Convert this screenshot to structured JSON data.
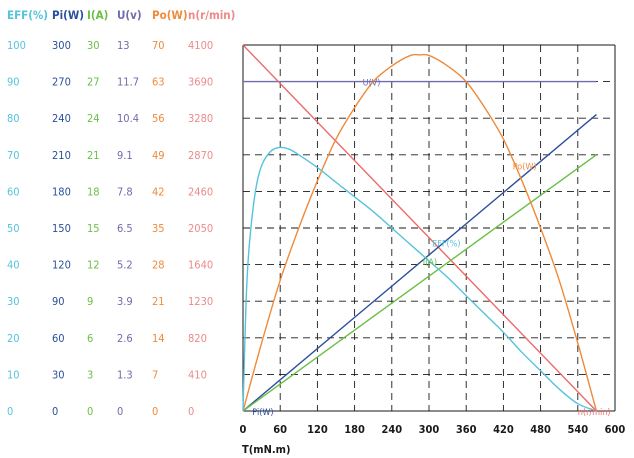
{
  "chart_data": {
    "type": "line",
    "x_label": "T(mN.m)",
    "x_ticks": [
      "0",
      "60",
      "120",
      "180",
      "240",
      "300",
      "360",
      "420",
      "480",
      "540",
      "600"
    ],
    "xlim": [
      0,
      600
    ],
    "grid": true,
    "columns": [
      {
        "key": "eff",
        "header": "EFF(%)",
        "color": "#55c3dc",
        "ticks": [
          "100",
          "90",
          "80",
          "70",
          "60",
          "50",
          "40",
          "30",
          "20",
          "10",
          "0"
        ]
      },
      {
        "key": "pi",
        "header": "Pi(W)",
        "color": "#2a4f9c",
        "ticks": [
          "300",
          "270",
          "240",
          "210",
          "180",
          "150",
          "120",
          "90",
          "60",
          "30",
          "0"
        ]
      },
      {
        "key": "i",
        "header": "I(A)",
        "color": "#6bbf45",
        "ticks": [
          "30",
          "27",
          "24",
          "21",
          "18",
          "15",
          "12",
          "9",
          "6",
          "3",
          "0"
        ]
      },
      {
        "key": "u",
        "header": "U(v)",
        "color": "#6e6cab",
        "ticks": [
          "13",
          "11.7",
          "10.4",
          "9.1",
          "7.8",
          "6.5",
          "5.2",
          "3.9",
          "2.6",
          "1.3",
          "0"
        ]
      },
      {
        "key": "po",
        "header": "Po(W)",
        "color": "#ef8a3a",
        "ticks": [
          "70",
          "63",
          "56",
          "49",
          "42",
          "35",
          "28",
          "21",
          "14",
          "7",
          "0"
        ]
      },
      {
        "key": "n",
        "header": "n(r/min)",
        "color": "#ec8a8a",
        "ticks": [
          "4100",
          "3690",
          "3280",
          "2870",
          "2460",
          "2050",
          "1640",
          "1230",
          "820",
          "410",
          "0"
        ]
      }
    ],
    "series": [
      {
        "name": "U(V)",
        "color": "#6e6cab",
        "label_at": [
          193,
          11.7
        ],
        "x": [
          0,
          570
        ],
        "y": [
          11.7,
          11.7
        ]
      },
      {
        "name": "n(r/min)",
        "color": "#ec6a6a",
        "label_at": [
          540,
          0
        ],
        "x": [
          0,
          570
        ],
        "y": [
          4100,
          0
        ]
      },
      {
        "name": "Pi(W)",
        "color": "#2a4f9c",
        "label_at": [
          15,
          0
        ],
        "x": [
          0,
          570
        ],
        "y": [
          0,
          243
        ]
      },
      {
        "name": "I(A)",
        "color": "#6bbf45",
        "label_at": [
          290,
          12.3
        ],
        "x": [
          0,
          570
        ],
        "y": [
          0,
          21
        ]
      },
      {
        "name": "Po(W)",
        "color": "#ef8a3a",
        "label_at": [
          435,
          47
        ],
        "x": [
          0,
          30,
          60,
          90,
          120,
          150,
          180,
          210,
          240,
          270,
          285,
          300,
          330,
          360,
          390,
          420,
          450,
          480,
          510,
          540,
          570
        ],
        "y": [
          0,
          13,
          25,
          35,
          44,
          52,
          58,
          63,
          66,
          68,
          68.1,
          68,
          66,
          63,
          58,
          52,
          44,
          35,
          25,
          13,
          0
        ]
      },
      {
        "name": "EFF(%)",
        "color": "#55c3dc",
        "label_at": [
          305,
          46
        ],
        "x": [
          0,
          5,
          10,
          20,
          30,
          45,
          60,
          75,
          90,
          120,
          150,
          180,
          210,
          240,
          270,
          300,
          330,
          360,
          390,
          420,
          450,
          480,
          510,
          540,
          570
        ],
        "y": [
          0,
          30,
          45,
          60,
          67,
          71,
          72,
          71.5,
          70,
          66.5,
          62.5,
          58.5,
          54.5,
          50,
          45.5,
          41,
          36.5,
          31.5,
          26.5,
          21.5,
          16,
          11,
          6,
          2,
          0
        ]
      }
    ]
  }
}
